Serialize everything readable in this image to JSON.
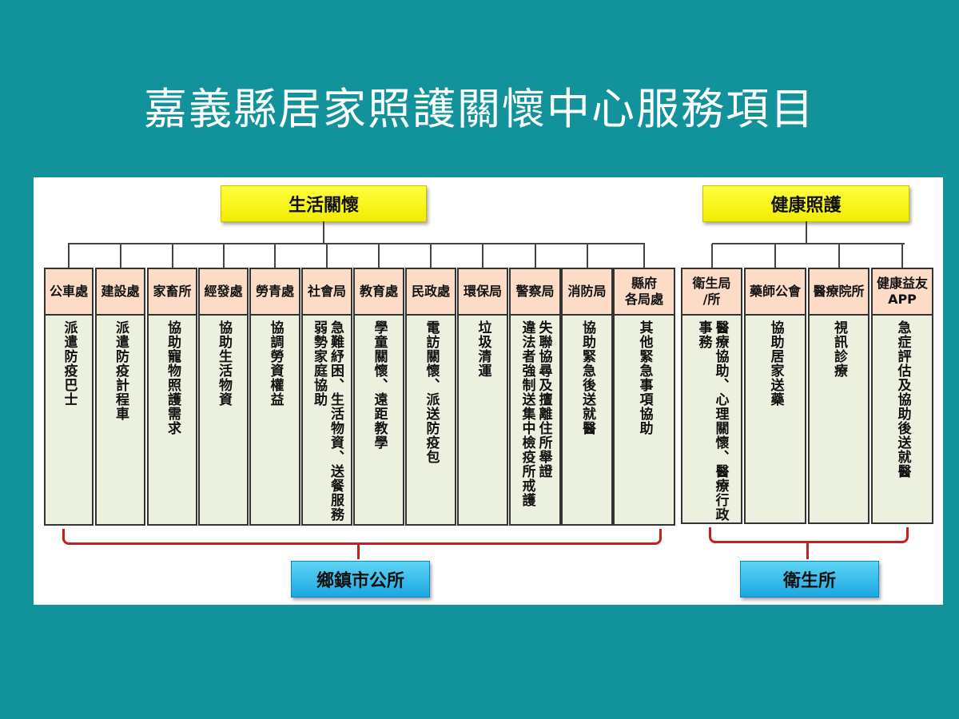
{
  "title": "嘉義縣居家照護關懷中心服務項目",
  "groups": [
    {
      "category": "生活關懷",
      "provider": "鄉鎮市公所",
      "columns": [
        {
          "header": "公車處",
          "service": "派遣防疫巴士"
        },
        {
          "header": "建設處",
          "service": "派遣防疫計程車"
        },
        {
          "header": "家畜所",
          "service": "協助寵物照護需求"
        },
        {
          "header": "經發處",
          "service": "協助生活物資"
        },
        {
          "header": "勞青處",
          "service": "協調勞資權益"
        },
        {
          "header": "社會局",
          "service": "急難紓困、生活物資、送餐服務\n弱勢家庭協助"
        },
        {
          "header": "教育處",
          "service": "學童關懷、遠距教學"
        },
        {
          "header": "民政處",
          "service": "電訪關懷、派送防疫包"
        },
        {
          "header": "環保局",
          "service": "垃圾清運"
        },
        {
          "header": "警察局",
          "service": "失聯協尋及擅離住所舉證\n違法者強制送集中檢疫所戒護"
        },
        {
          "header": "消防局",
          "service": "協助緊急後送就醫"
        },
        {
          "header": "縣府\n各局處",
          "service": "其他緊急事項協助"
        }
      ]
    },
    {
      "category": "健康照護",
      "provider": "衛生所",
      "columns": [
        {
          "header": "衛生局\n/所",
          "service": "醫療協助、心理關懷、醫療行政\n事務"
        },
        {
          "header": "藥師公會",
          "service": "協助居家送藥"
        },
        {
          "header": "醫療院所",
          "service": "視訊診療"
        },
        {
          "header": "健康益友\nAPP",
          "service": "急症評估及協助後送就醫"
        }
      ]
    }
  ],
  "colors": {
    "background": "#12939b",
    "category": "#ffff40",
    "provider": "#1aa8e0",
    "header": "#fcdcc6",
    "body": "#ecf1df",
    "bracket": "#c81e1e"
  }
}
